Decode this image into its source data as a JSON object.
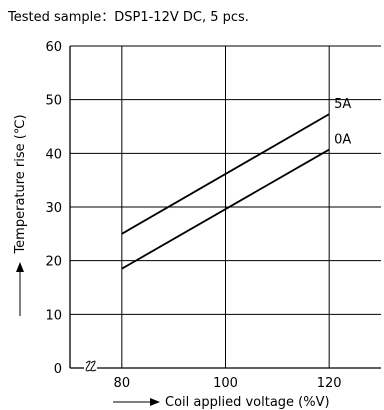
{
  "chart_data": {
    "type": "line",
    "subtitle": "Tested sample：DSP1-12V DC, 5 pcs.",
    "xlabel": "Coil applied voltage (%V)",
    "ylabel": "Temperature rise (℃)",
    "xlim": [
      70,
      130
    ],
    "ylim": [
      0,
      60
    ],
    "xticks": [
      80,
      100,
      120
    ],
    "yticks": [
      0,
      10,
      20,
      30,
      40,
      50,
      60
    ],
    "x_axis_break": true,
    "grid": true,
    "series": [
      {
        "name": "5A",
        "x": [
          80,
          120
        ],
        "y": [
          25,
          47.3
        ]
      },
      {
        "name": "0A",
        "x": [
          80,
          120
        ],
        "y": [
          18.5,
          40.7
        ]
      }
    ]
  }
}
